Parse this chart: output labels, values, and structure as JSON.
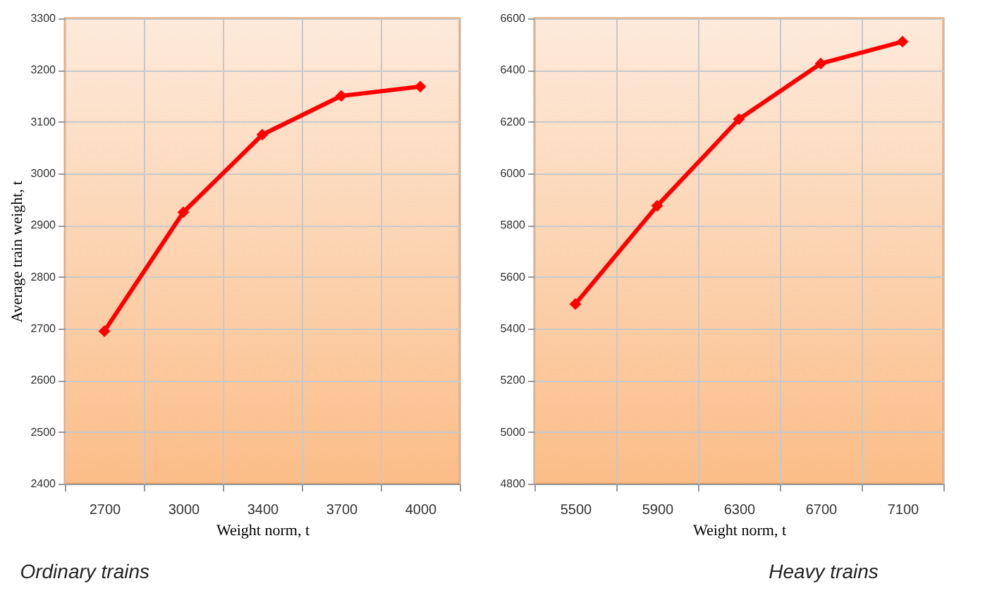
{
  "chart_data": [
    {
      "type": "line",
      "categories": [
        "2700",
        "3000",
        "3400",
        "3700",
        "4000"
      ],
      "xlabel": "Weight norm, t",
      "ylabel": "Average train weight, t",
      "annotations": [
        "Ordinary trains"
      ],
      "ylim": [
        2400,
        3300
      ],
      "yticks": [
        2400,
        2500,
        2600,
        2700,
        2800,
        2900,
        3000,
        3100,
        3200,
        3300
      ],
      "grid": true,
      "marker": "diamond",
      "line_style": "solid",
      "series": [
        {
          "color": "#ff0000",
          "values": [
            2695,
            2925,
            3075,
            3150,
            3168
          ]
        }
      ]
    },
    {
      "type": "line",
      "categories": [
        "5500",
        "5900",
        "6300",
        "6700",
        "7100"
      ],
      "xlabel": "Weight norm, t",
      "annotations": [
        "Heavy trains"
      ],
      "ylim": [
        4800,
        6600
      ],
      "yticks": [
        4800,
        5000,
        5200,
        5400,
        5600,
        5800,
        6000,
        6200,
        6400,
        6600
      ],
      "grid": true,
      "marker": "diamond",
      "line_style": "solid",
      "series": [
        {
          "color": "#ff0000",
          "values": [
            5495,
            5875,
            6210,
            6425,
            6510
          ]
        }
      ]
    }
  ]
}
